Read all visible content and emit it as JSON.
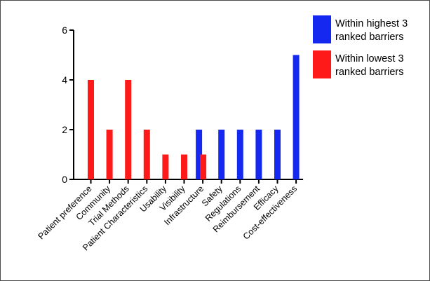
{
  "chart_data": {
    "type": "bar",
    "categories": [
      "Patient preference",
      "Community",
      "Trial Methods",
      "Patient Characteristics",
      "Usability",
      "Visibility",
      "Infrastructure",
      "Safety",
      "Regulations",
      "Reimbursement",
      "Efficacy",
      "Cost-effectiveness"
    ],
    "series": [
      {
        "name": "Within highest 3 ranked barriers",
        "color": "#1428f0",
        "values": [
          0,
          0,
          0,
          0,
          0,
          0,
          2,
          2,
          2,
          2,
          2,
          5
        ]
      },
      {
        "name": "Within lowest 3 ranked barriers",
        "color": "#ff1a1a",
        "values": [
          4,
          2,
          4,
          2,
          1,
          1,
          1,
          0,
          0,
          0,
          0,
          0
        ]
      }
    ],
    "ylim": [
      0,
      6
    ],
    "yticks": [
      "0",
      "2",
      "4",
      "6"
    ],
    "grid": false,
    "legend_position": "top-right",
    "legend": [
      {
        "line1": "Within highest 3",
        "line2": "ranked barriers",
        "color": "#1428f0"
      },
      {
        "line1": "Within lowest 3",
        "line2": "ranked barriers",
        "color": "#ff1a1a"
      }
    ]
  }
}
